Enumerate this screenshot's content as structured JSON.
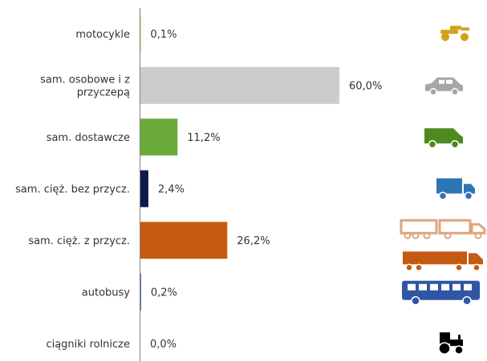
{
  "chart_data": {
    "type": "bar",
    "orientation": "horizontal",
    "categories": [
      [
        "motocykle"
      ],
      [
        "sam. osobowe i z",
        "przyczepą"
      ],
      [
        "sam. dostawcze"
      ],
      [
        "sam. cięż. bez przycz."
      ],
      [
        "sam. cięż. z przycz."
      ],
      [
        "autobusy"
      ],
      [
        "ciągniki rolnicze"
      ]
    ],
    "values": [
      0.1,
      60.0,
      11.2,
      2.4,
      26.2,
      0.2,
      0.0
    ],
    "value_labels": [
      "0,1%",
      "60,0%",
      "11,2%",
      "2,4%",
      "26,2%",
      "0,2%",
      "0,0%"
    ],
    "xlim": [
      0,
      60
    ],
    "unit": "%",
    "bar_colors": [
      "#d4a017",
      "#cccccc",
      "#6aaa3a",
      "#0d1b4b",
      "#c55a11",
      "#2f55a4",
      "#000000"
    ],
    "icons": [
      "motorcycle-icon",
      "car-icon",
      "van-icon",
      "truck-icon",
      "truck-trailer-icon",
      "bus-icon",
      "tractor-icon"
    ],
    "icon_colors": [
      "#d4a017",
      "#a6a6a6",
      "#4e8a1f",
      "#2e75b6",
      "#c55a11",
      "#2f55a4",
      "#000000"
    ],
    "grid": false,
    "legend": "none"
  }
}
